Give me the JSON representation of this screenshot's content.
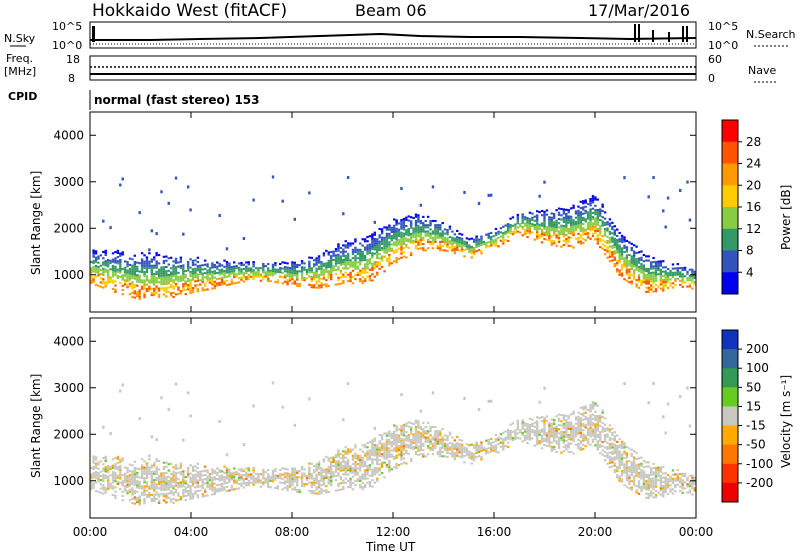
{
  "header": {
    "title": "Hokkaido West (fitACF)",
    "beam": "Beam 06",
    "date": "17/Mar/2016",
    "cpid_label": "CPID",
    "cpid_value": "normal (fast stereo) 153"
  },
  "nsky_panel": {
    "left_label": "N.Sky",
    "left_ticks": [
      "10^5",
      "10^0"
    ],
    "right_ticks": [
      "10^5",
      "10^0"
    ],
    "right_label": "N.Search"
  },
  "freq_panel": {
    "left_label_line1": "Freq.",
    "left_label_line2": "[MHz]",
    "left_ticks": [
      "18",
      "8"
    ],
    "right_ticks": [
      "60",
      "0"
    ],
    "right_label": "Nave"
  },
  "power_panel": {
    "ylabel": "Slant Range [km]",
    "yticks": [
      "4000",
      "3000",
      "2000",
      "1000"
    ],
    "colorbar_label": "Power [dB]",
    "colorbar_ticks": [
      "28",
      "24",
      "20",
      "16",
      "12",
      "8",
      "4"
    ],
    "colorbar_colors": [
      "#ff0000",
      "#ff5500",
      "#ff9900",
      "#ffcc00",
      "#88cc44",
      "#339966",
      "#3355bb",
      "#0000ee"
    ]
  },
  "velocity_panel": {
    "ylabel": "Slant Range [km]",
    "yticks": [
      "4000",
      "3000",
      "2000",
      "1000"
    ],
    "colorbar_label": "Velocity [m s⁻¹]",
    "colorbar_ticks": [
      "200",
      "100",
      "50",
      "15",
      "-15",
      "-50",
      "-100",
      "-200"
    ],
    "colorbar_colors": [
      "#1133bb",
      "#336699",
      "#339955",
      "#66cc22",
      "#c8c8c0",
      "#ffaa00",
      "#ff7700",
      "#ff3300",
      "#ee0000"
    ]
  },
  "xaxis": {
    "label": "Time UT",
    "ticks": [
      "00:00",
      "04:00",
      "08:00",
      "12:00",
      "16:00",
      "20:00",
      "00:00"
    ]
  },
  "chart_data": [
    {
      "type": "heatmap",
      "name": "power",
      "x_range_hours": [
        0,
        24
      ],
      "ylim": [
        200,
        4500
      ],
      "value_range": [
        0,
        30
      ],
      "echo_band_center_km": [
        [
          0,
          1150
        ],
        [
          1,
          1050
        ],
        [
          2,
          950
        ],
        [
          3,
          950
        ],
        [
          4,
          1000
        ],
        [
          5,
          1000
        ],
        [
          6,
          1050
        ],
        [
          7,
          1050
        ],
        [
          8,
          1000
        ],
        [
          9,
          1050
        ],
        [
          10,
          1250
        ],
        [
          11,
          1300
        ],
        [
          12,
          1700
        ],
        [
          13,
          1900
        ],
        [
          14,
          1800
        ],
        [
          15,
          1550
        ],
        [
          16,
          1750
        ],
        [
          17,
          2100
        ],
        [
          18,
          2000
        ],
        [
          19,
          2000
        ],
        [
          20,
          2200
        ],
        [
          21,
          1400
        ],
        [
          22,
          1000
        ],
        [
          23,
          950
        ],
        [
          24,
          900
        ]
      ]
    },
    {
      "type": "heatmap",
      "name": "velocity",
      "x_range_hours": [
        0,
        24
      ],
      "ylim": [
        200,
        4500
      ],
      "value_range": [
        -200,
        200
      ]
    }
  ]
}
